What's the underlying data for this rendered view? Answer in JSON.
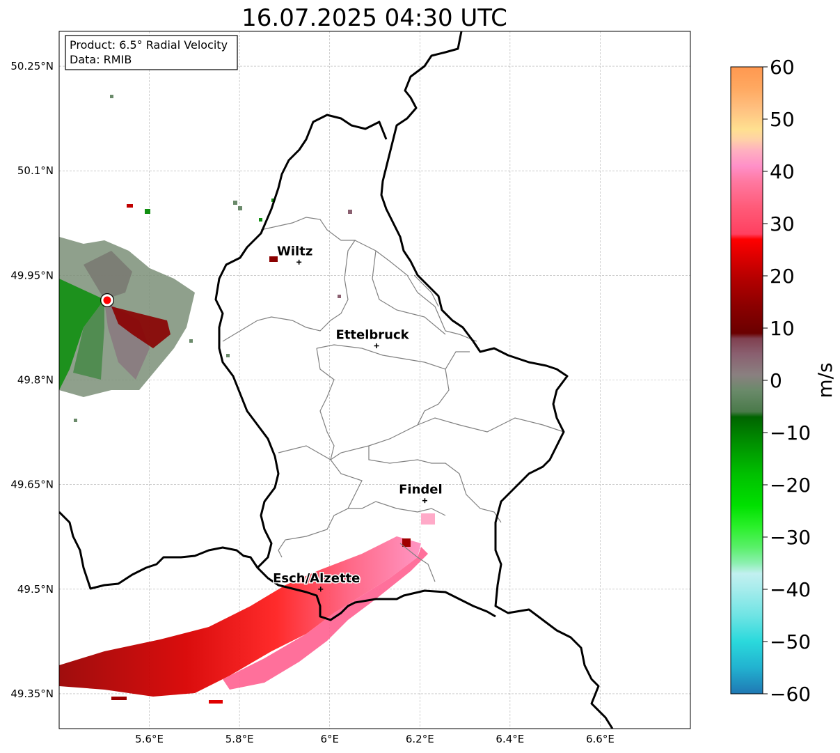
{
  "title": "16.07.2025 04:30 UTC",
  "info_box": {
    "product": "Product: 6.5° Radial Velocity",
    "source": "Data: RMIB"
  },
  "map": {
    "lon_range": [
      5.4,
      6.8
    ],
    "lat_range": [
      49.3,
      50.3
    ],
    "lon_ticks": [
      {
        "value": 5.6,
        "label": "5.6°E"
      },
      {
        "value": 5.8,
        "label": "5.8°E"
      },
      {
        "value": 6.0,
        "label": "6°E"
      },
      {
        "value": 6.2,
        "label": "6.2°E"
      },
      {
        "value": 6.4,
        "label": "6.4°E"
      },
      {
        "value": 6.6,
        "label": "6.6°E"
      }
    ],
    "lat_ticks": [
      {
        "value": 50.25,
        "label": "50.25°N"
      },
      {
        "value": 50.1,
        "label": "50.1°N"
      },
      {
        "value": 49.95,
        "label": "49.95°N"
      },
      {
        "value": 49.8,
        "label": "49.8°N"
      },
      {
        "value": 49.65,
        "label": "49.65°N"
      },
      {
        "value": 49.5,
        "label": "49.5°N"
      },
      {
        "value": 49.35,
        "label": "49.35°N"
      }
    ],
    "grid": true,
    "radar_site": {
      "lon": 5.505,
      "lat": 49.914
    },
    "cities": [
      {
        "name": "Wiltz",
        "lon": 5.932,
        "lat": 49.969
      },
      {
        "name": "Ettelbruck",
        "lon": 6.104,
        "lat": 49.849
      },
      {
        "name": "Findel",
        "lon": 6.211,
        "lat": 49.627
      },
      {
        "name": "Esch/Alzette",
        "lon": 5.98,
        "lat": 49.5
      }
    ],
    "colors": {
      "border": "#000000",
      "cantons": "#808080",
      "grid": "#b0b0b0",
      "radar_marker": "#ff0000"
    }
  },
  "colorbar": {
    "label": "m/s",
    "range": [
      -60,
      60
    ],
    "ticks": [
      {
        "value": 60,
        "label": "60"
      },
      {
        "value": 50,
        "label": "50"
      },
      {
        "value": 40,
        "label": "40"
      },
      {
        "value": 30,
        "label": "30"
      },
      {
        "value": 20,
        "label": "20"
      },
      {
        "value": 10,
        "label": "10"
      },
      {
        "value": 0,
        "label": "0"
      },
      {
        "value": -10,
        "label": "−10"
      },
      {
        "value": -20,
        "label": "−20"
      },
      {
        "value": -30,
        "label": "−30"
      },
      {
        "value": -40,
        "label": "−40"
      },
      {
        "value": -50,
        "label": "−50"
      },
      {
        "value": -60,
        "label": "−60"
      }
    ],
    "color_stops": [
      {
        "value": -60,
        "color": "#1f78b4"
      },
      {
        "value": -55,
        "color": "#22b2d0"
      },
      {
        "value": -50,
        "color": "#2ad9dc"
      },
      {
        "value": -45,
        "color": "#6fe4e4"
      },
      {
        "value": -40,
        "color": "#a6ecec"
      },
      {
        "value": -37,
        "color": "#c2f0f0"
      },
      {
        "value": -35,
        "color": "#8cf0b0"
      },
      {
        "value": -32,
        "color": "#5af06a"
      },
      {
        "value": -28,
        "color": "#2af02a"
      },
      {
        "value": -24,
        "color": "#00e000"
      },
      {
        "value": -18,
        "color": "#00c000"
      },
      {
        "value": -12,
        "color": "#009000"
      },
      {
        "value": -7,
        "color": "#006400"
      },
      {
        "value": -6,
        "color": "#4a7a4a"
      },
      {
        "value": -2,
        "color": "#6a8a6a"
      },
      {
        "value": 1,
        "color": "#8a8080"
      },
      {
        "value": 5,
        "color": "#8a6070"
      },
      {
        "value": 8,
        "color": "#804050"
      },
      {
        "value": 9,
        "color": "#6a0000"
      },
      {
        "value": 14,
        "color": "#8a0000"
      },
      {
        "value": 19,
        "color": "#b00000"
      },
      {
        "value": 24,
        "color": "#e00000"
      },
      {
        "value": 27,
        "color": "#ff0000"
      },
      {
        "value": 28,
        "color": "#ff4060"
      },
      {
        "value": 33,
        "color": "#ff5a78"
      },
      {
        "value": 38,
        "color": "#ff78a0"
      },
      {
        "value": 41,
        "color": "#ff90c8"
      },
      {
        "value": 44,
        "color": "#ffb0c0"
      },
      {
        "value": 46,
        "color": "#ffd0a8"
      },
      {
        "value": 48,
        "color": "#ffe090"
      },
      {
        "value": 52,
        "color": "#ffc080"
      },
      {
        "value": 56,
        "color": "#ffa860"
      },
      {
        "value": 60,
        "color": "#ff9850"
      }
    ]
  }
}
